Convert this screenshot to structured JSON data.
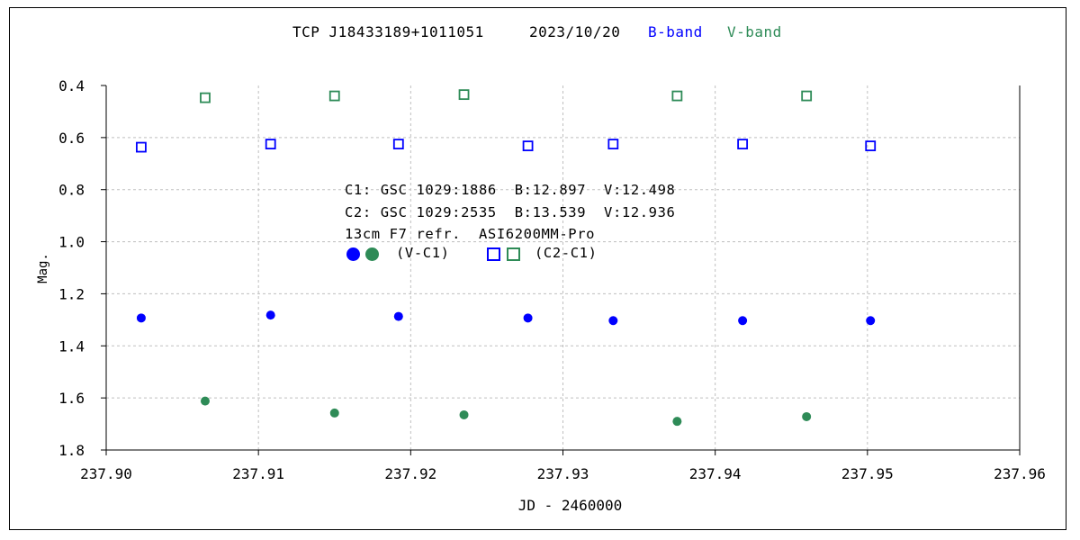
{
  "colors": {
    "b_band": "#0000ff",
    "v_band": "#2e8b57",
    "grid": "#bfbfbf",
    "axis": "#000000"
  },
  "chart_data": {
    "type": "scatter",
    "title_parts": {
      "object": "TCP J18433189+1011051",
      "date": "2023/10/20",
      "b_label": "B-band",
      "v_label": "V-band"
    },
    "xlabel": "JD - 2460000",
    "ylabel": "Mag.",
    "xlim": [
      237.9,
      237.96
    ],
    "ylim": [
      0.4,
      1.8
    ],
    "y_inverted": true,
    "grid": true,
    "x_ticks": [
      "237.90",
      "237.91",
      "237.92",
      "237.93",
      "237.94",
      "237.95",
      "237.96"
    ],
    "y_ticks": [
      "0.4",
      "0.6",
      "0.8",
      "1.0",
      "1.2",
      "1.4",
      "1.6",
      "1.8"
    ],
    "series": [
      {
        "name": "B (V-C1)",
        "marker": "filled-circle",
        "color": "#0000ff",
        "x": [
          237.9023,
          237.9108,
          237.9192,
          237.9277,
          237.9333,
          237.9418,
          237.9502
        ],
        "y": [
          1.293,
          1.282,
          1.287,
          1.293,
          1.303,
          1.303,
          1.303
        ]
      },
      {
        "name": "V (V-C1)",
        "marker": "filled-circle",
        "color": "#2e8b57",
        "x": [
          237.9065,
          237.915,
          237.9235,
          237.9375,
          237.946
        ],
        "y": [
          1.612,
          1.658,
          1.665,
          1.69,
          1.672
        ]
      },
      {
        "name": "B (C2-C1)",
        "marker": "open-square",
        "color": "#0000ff",
        "x": [
          237.9023,
          237.9108,
          237.9192,
          237.9277,
          237.9333,
          237.9418,
          237.9502
        ],
        "y": [
          0.637,
          0.625,
          0.625,
          0.632,
          0.625,
          0.625,
          0.632
        ]
      },
      {
        "name": "V (C2-C1)",
        "marker": "open-square",
        "color": "#2e8b57",
        "x": [
          237.9065,
          237.915,
          237.9235,
          237.9375,
          237.946
        ],
        "y": [
          0.447,
          0.44,
          0.435,
          0.44,
          0.44
        ]
      }
    ],
    "annotations": {
      "c1": "C1: GSC 1029:1886  B:12.897  V:12.498",
      "c2": "C2: GSC 1029:2535  B:13.539  V:12.936",
      "setup": "13cm F7 refr.  ASI6200MM-Pro",
      "legend_v_c1": "(V-C1)",
      "legend_c2_c1": "(C2-C1)"
    }
  }
}
